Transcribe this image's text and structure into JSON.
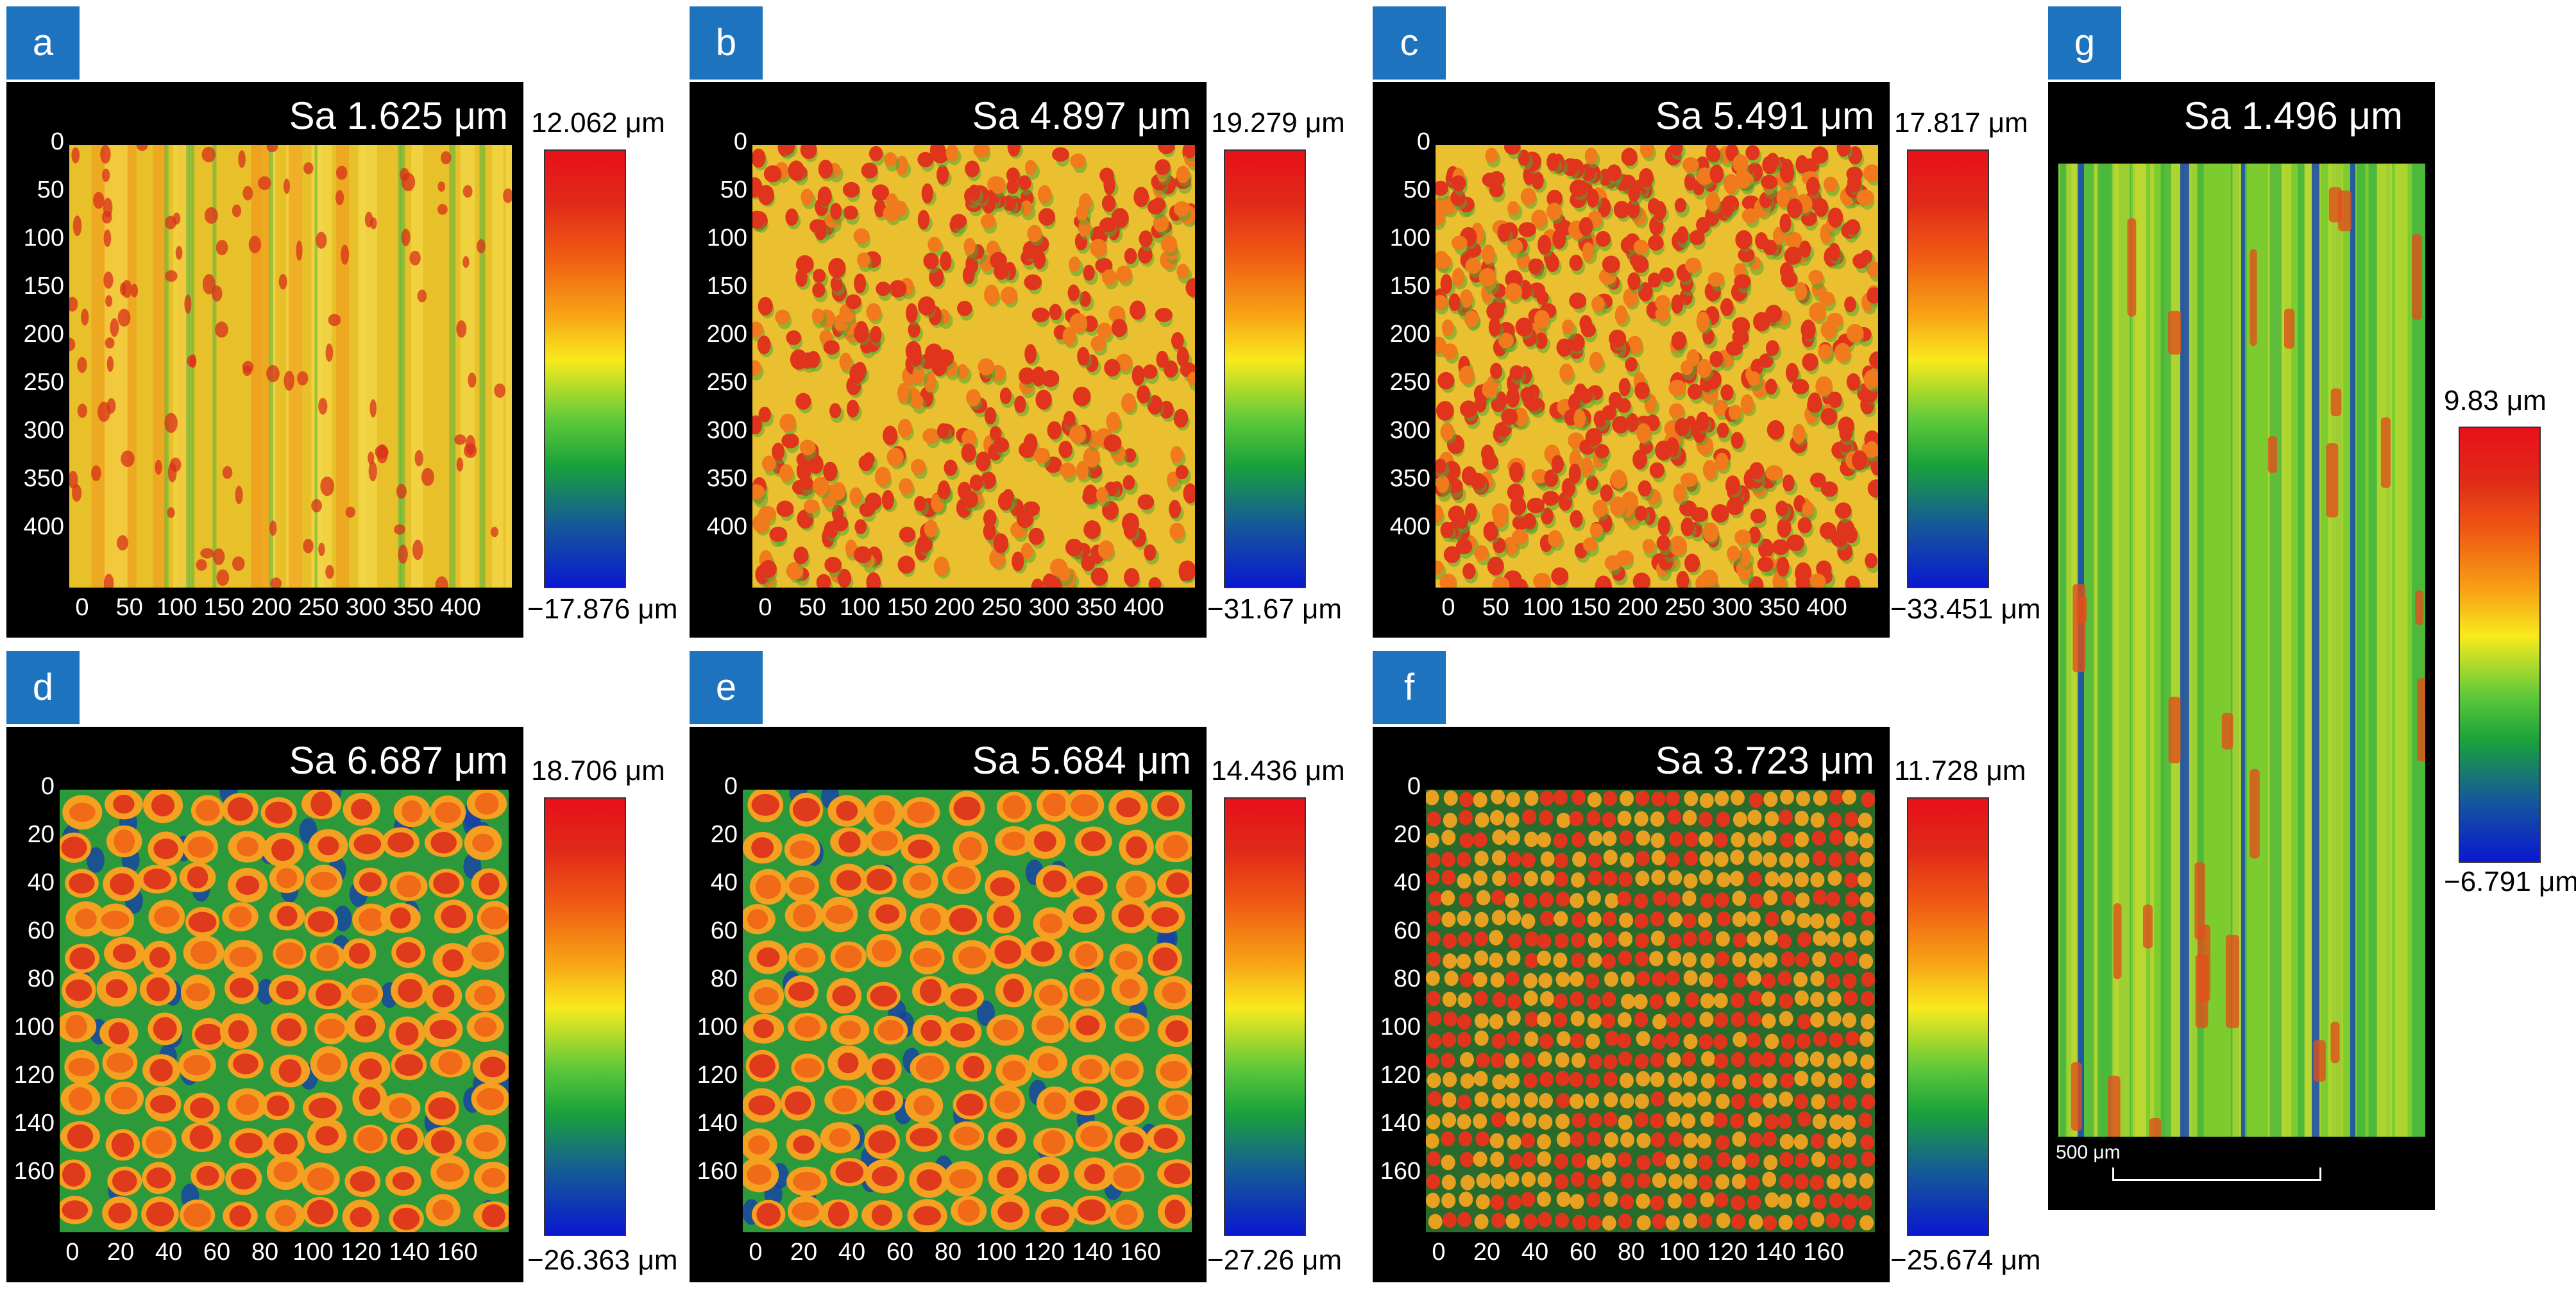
{
  "panels": {
    "a": {
      "letter": "a",
      "sa": "Sa 1.625 μm",
      "cmax": "12.062 μm",
      "cmin": "−17.876 μm",
      "y_ticks": [
        "0",
        "50",
        "100",
        "150",
        "200",
        "250",
        "300",
        "350",
        "400"
      ],
      "x_ticks": [
        "0",
        "50",
        "100",
        "150",
        "200",
        "250",
        "300",
        "350",
        "400"
      ]
    },
    "b": {
      "letter": "b",
      "sa": "Sa 4.897 μm",
      "cmax": "19.279 μm",
      "cmin": "−31.67 μm",
      "y_ticks": [
        "0",
        "50",
        "100",
        "150",
        "200",
        "250",
        "300",
        "350",
        "400"
      ],
      "x_ticks": [
        "0",
        "50",
        "100",
        "150",
        "200",
        "250",
        "300",
        "350",
        "400"
      ]
    },
    "c": {
      "letter": "c",
      "sa": "Sa 5.491 μm",
      "cmax": "17.817 μm",
      "cmin": "−33.451 μm",
      "y_ticks": [
        "0",
        "50",
        "100",
        "150",
        "200",
        "250",
        "300",
        "350",
        "400"
      ],
      "x_ticks": [
        "0",
        "50",
        "100",
        "150",
        "200",
        "250",
        "300",
        "350",
        "400"
      ]
    },
    "d": {
      "letter": "d",
      "sa": "Sa 6.687 μm",
      "cmax": "18.706 μm",
      "cmin": "−26.363 μm",
      "y_ticks": [
        "0",
        "20",
        "40",
        "60",
        "80",
        "100",
        "120",
        "140",
        "160"
      ],
      "x_ticks": [
        "0",
        "20",
        "40",
        "60",
        "80",
        "100",
        "120",
        "140",
        "160"
      ]
    },
    "e": {
      "letter": "e",
      "sa": "Sa 5.684 μm",
      "cmax": "14.436 μm",
      "cmin": "−27.26 μm",
      "y_ticks": [
        "0",
        "20",
        "40",
        "60",
        "80",
        "100",
        "120",
        "140",
        "160"
      ],
      "x_ticks": [
        "0",
        "20",
        "40",
        "60",
        "80",
        "100",
        "120",
        "140",
        "160"
      ]
    },
    "f": {
      "letter": "f",
      "sa": "Sa 3.723 μm",
      "cmax": "11.728 μm",
      "cmin": "−25.674 μm",
      "y_ticks": [
        "0",
        "20",
        "40",
        "60",
        "80",
        "100",
        "120",
        "140",
        "160"
      ],
      "x_ticks": [
        "0",
        "20",
        "40",
        "60",
        "80",
        "100",
        "120",
        "140",
        "160"
      ]
    },
    "g": {
      "letter": "g",
      "sa": "Sa 1.496 μm",
      "cmax": "9.83 μm",
      "cmin": "−6.791 μm",
      "scale": "500 μm"
    }
  },
  "colors": {
    "badge": "#1e73be",
    "frame": "#000000"
  }
}
